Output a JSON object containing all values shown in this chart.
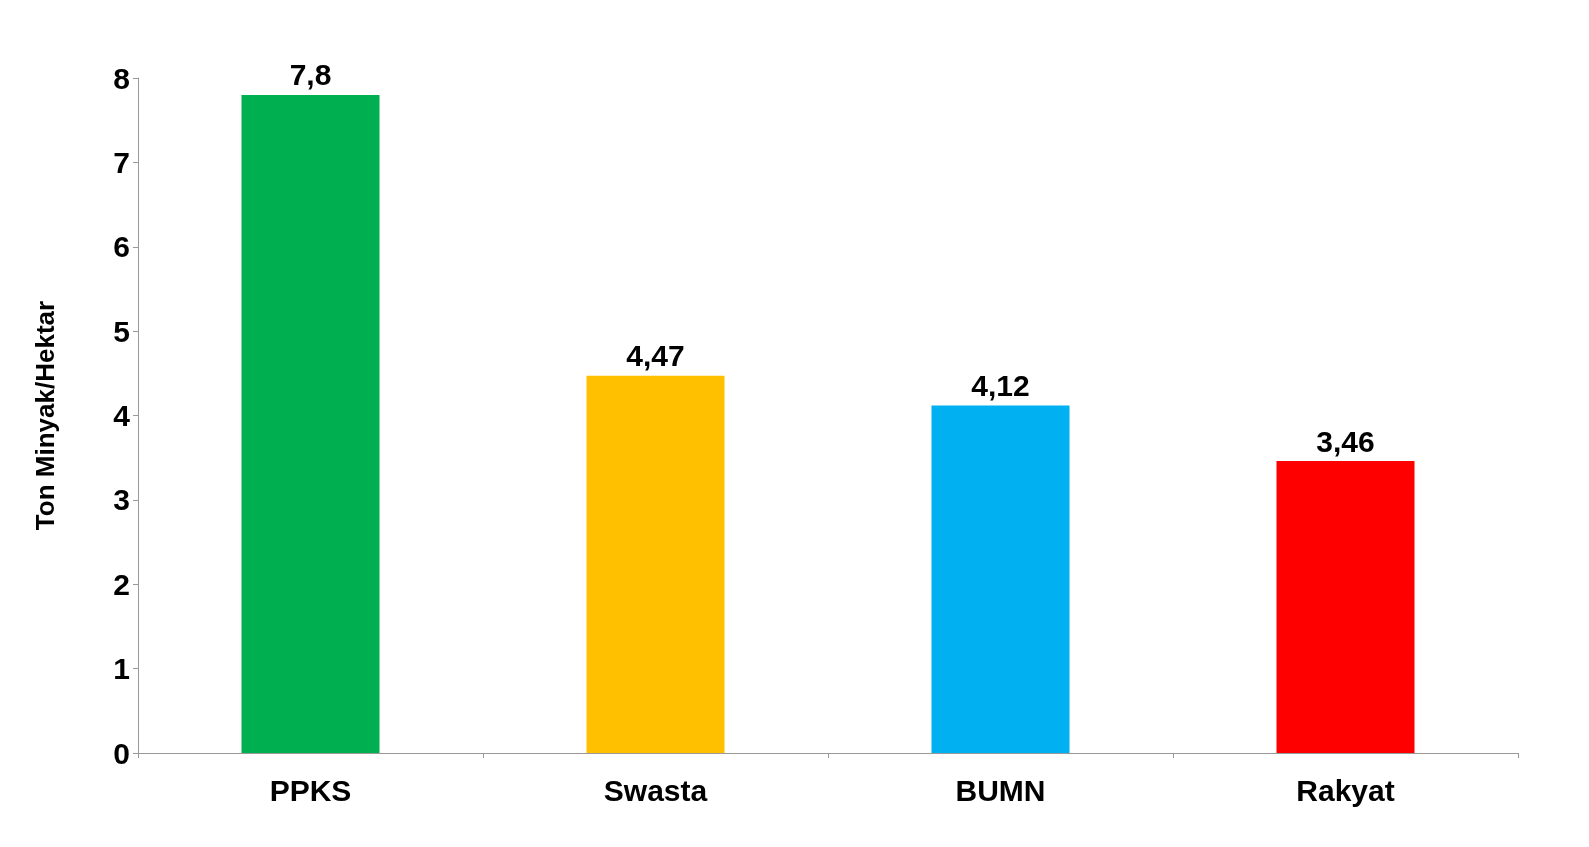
{
  "chart_data": {
    "type": "bar",
    "ylabel": "Ton Minyak/Hektar",
    "categories": [
      "PPKS",
      "Swasta",
      "BUMN",
      "Rakyat"
    ],
    "values": [
      7.8,
      4.47,
      4.12,
      3.46
    ],
    "colors": [
      "#00b050",
      "#ffc000",
      "#00b0f0",
      "#ff0000"
    ],
    "value_labels": [
      "7,8",
      "4,47",
      "4,12",
      "3,46"
    ],
    "ylim": [
      0,
      8
    ],
    "yticks": [
      0,
      1,
      2,
      3,
      4,
      5,
      6,
      7,
      8
    ],
    "grid": false
  }
}
